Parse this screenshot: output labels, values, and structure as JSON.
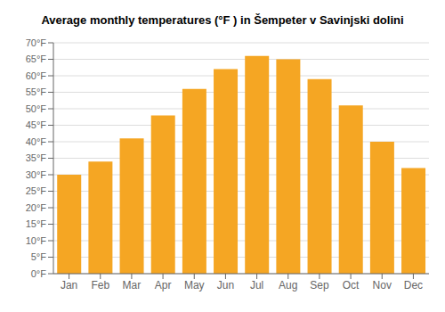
{
  "chart_data": {
    "type": "bar",
    "title": "Average monthly temperatures (°F ) in Šempeter v Savinjski dolini",
    "categories": [
      "Jan",
      "Feb",
      "Mar",
      "Apr",
      "May",
      "Jun",
      "Jul",
      "Aug",
      "Sep",
      "Oct",
      "Nov",
      "Dec"
    ],
    "values": [
      30,
      34,
      41,
      48,
      56,
      62,
      66,
      65,
      59,
      51,
      40,
      32
    ],
    "color": "#F5A623",
    "ylim": [
      0,
      70
    ],
    "yticks": [
      {
        "value": 0,
        "label": "0°F"
      },
      {
        "value": 5,
        "label": "5°F"
      },
      {
        "value": 10,
        "label": "10°F"
      },
      {
        "value": 15,
        "label": "15°F"
      },
      {
        "value": 20,
        "label": "20°F"
      },
      {
        "value": 25,
        "label": "25°F"
      },
      {
        "value": 30,
        "label": "30°F"
      },
      {
        "value": 35,
        "label": "35°F"
      },
      {
        "value": 40,
        "label": "40°F"
      },
      {
        "value": 45,
        "label": "45°F"
      },
      {
        "value": 50,
        "label": "50°F"
      },
      {
        "value": 55,
        "label": "55°F"
      },
      {
        "value": 60,
        "label": "60°F"
      },
      {
        "value": 65,
        "label": "65°F"
      },
      {
        "value": 70,
        "label": "70°F"
      }
    ],
    "grid": true
  }
}
